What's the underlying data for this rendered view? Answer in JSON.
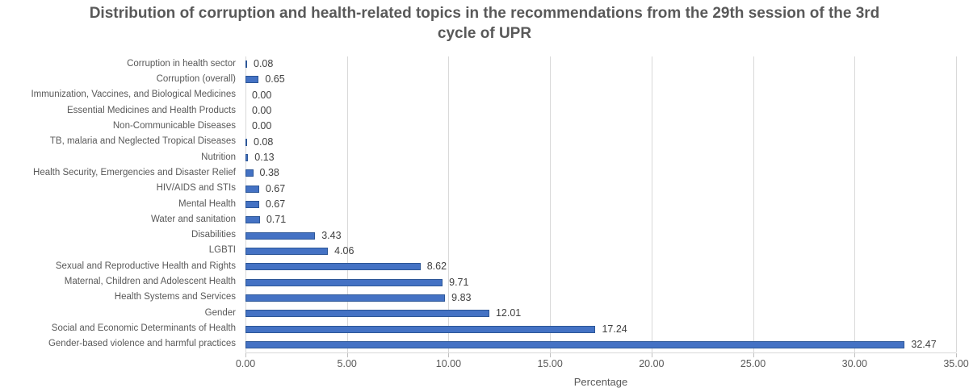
{
  "chart_data": {
    "type": "bar",
    "orientation": "horizontal",
    "title": "Distribution of corruption and health-related topics in the recommendations from the 29th session of the 3rd cycle of UPR",
    "xlabel": "Percentage",
    "xlim": [
      0,
      35
    ],
    "xtick_interval": 5,
    "xtick_labels": [
      "0.00",
      "5.00",
      "10.00",
      "15.00",
      "20.00",
      "25.00",
      "30.00",
      "35.00"
    ],
    "grid": true,
    "legend": "none",
    "categories": [
      "Corruption in health sector",
      "Corruption (overall)",
      "Immunization, Vaccines, and Biological Medicines",
      "Essential Medicines and Health Products",
      "Non-Communicable Diseases",
      "TB, malaria and Neglected Tropical Diseases",
      "Nutrition",
      "Health Security, Emergencies and Disaster Relief",
      "HIV/AIDS and STIs",
      "Mental Health",
      "Water and sanitation",
      "Disabilities",
      "LGBTI",
      "Sexual and Reproductive Health and Rights",
      "Maternal, Children and Adolescent Health",
      "Health Systems and Services",
      "Gender",
      "Social and Economic Determinants of Health",
      "Gender-based violence and harmful practices"
    ],
    "values": [
      0.08,
      0.65,
      0.0,
      0.0,
      0.0,
      0.08,
      0.13,
      0.38,
      0.67,
      0.67,
      0.71,
      3.43,
      4.06,
      8.62,
      9.71,
      9.83,
      12.01,
      17.24,
      32.47
    ],
    "value_labels": [
      "0.08",
      "0.65",
      "0.00",
      "0.00",
      "0.00",
      "0.08",
      "0.13",
      "0.38",
      "0.67",
      "0.67",
      "0.71",
      "3.43",
      "4.06",
      "8.62",
      "9.71",
      "9.83",
      "12.01",
      "17.24",
      "32.47"
    ],
    "colors": {
      "bar_fill": "#4472C4",
      "bar_border": "#2C5697",
      "gridline": "#D9D9D9",
      "axis_line": "#D9D9D9",
      "tick_mark": "#BFBFBF",
      "title_text": "#595959",
      "category_text": "#595959",
      "value_text": "#404040",
      "axis_text": "#595959"
    }
  }
}
